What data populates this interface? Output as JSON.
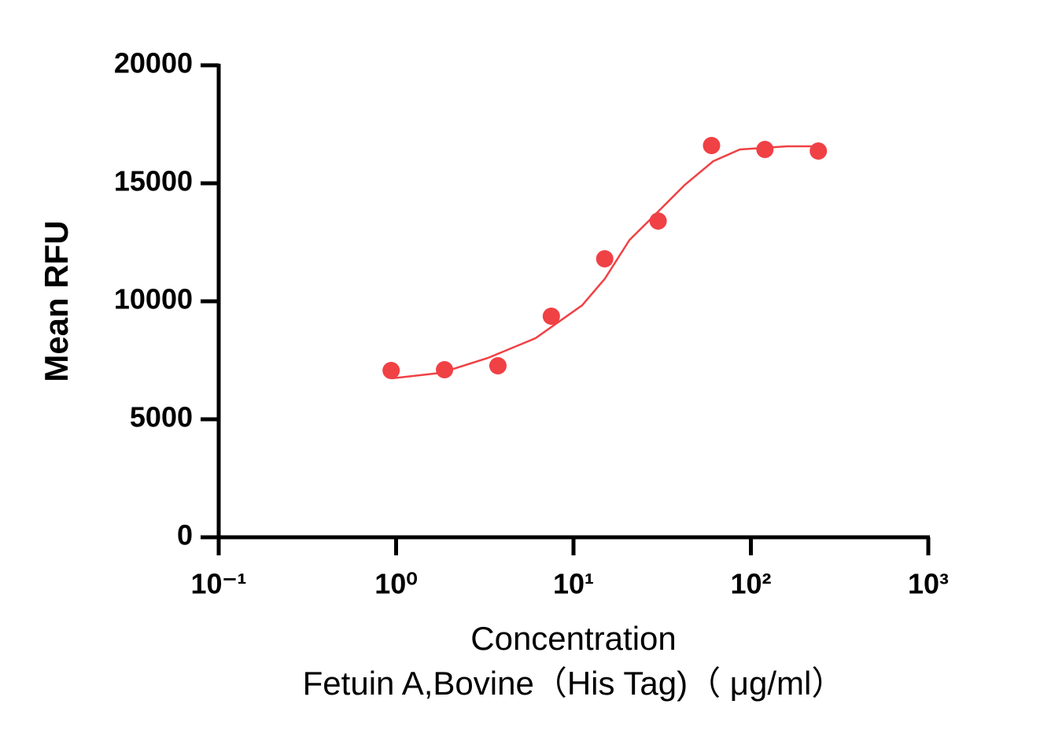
{
  "chart_data": {
    "type": "scatter",
    "ylabel": "Mean RFU",
    "xlabel": [
      "Concentration",
      "Fetuin A,Bovine（His Tag)（ μg/ml）"
    ],
    "xscale": "log",
    "xlim": [
      0.1,
      1000
    ],
    "xticks": [
      {
        "value": 0.1,
        "label": "10⁻¹"
      },
      {
        "value": 1,
        "label": "10⁰"
      },
      {
        "value": 10,
        "label": "10¹"
      },
      {
        "value": 100,
        "label": "10²"
      },
      {
        "value": 1000,
        "label": "10³"
      }
    ],
    "ylim": [
      0,
      20000
    ],
    "yticks": [
      0,
      5000,
      10000,
      15000,
      20000
    ],
    "series": [
      {
        "color": "#f04145",
        "x": [
          0.9375,
          1.875,
          3.75,
          7.5,
          15,
          30,
          60,
          120,
          240
        ],
        "values": [
          7067,
          7100,
          7267,
          9367,
          11800,
          13400,
          16600,
          16433,
          16367
        ]
      }
    ],
    "fit": {
      "color": "#f04145",
      "x": [
        0.94,
        1.79,
        3.3,
        6.1,
        11.2,
        15,
        20.7,
        29.7,
        42.4,
        61.3,
        86.7,
        160,
        240
      ],
      "values": [
        6733,
        6967,
        7600,
        8433,
        9833,
        10950,
        12600,
        13767,
        14933,
        15933,
        16433,
        16567,
        16567
      ]
    }
  }
}
